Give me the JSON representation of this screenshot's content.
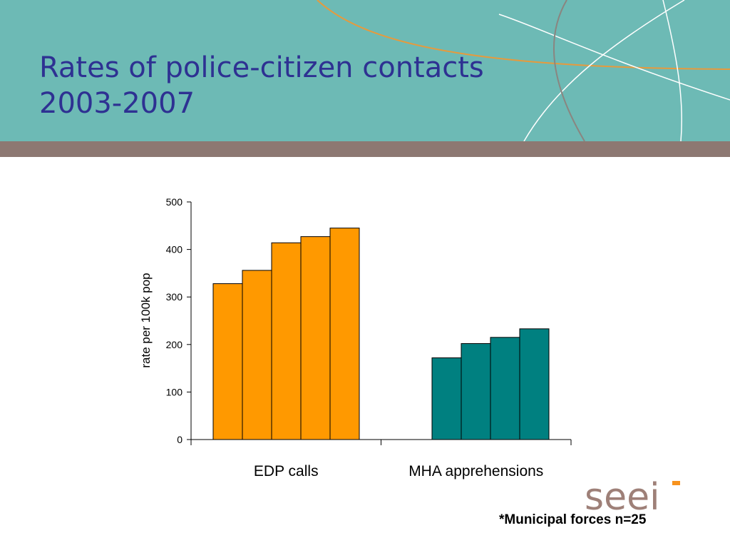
{
  "slide": {
    "title_line1": "Rates of police-citizen contacts",
    "title_line2": "2003-2007",
    "footnote": "*Municipal forces n=25",
    "logo_text": "seei"
  },
  "colors": {
    "header": "#6dbab5",
    "band": "#8d7872",
    "title": "#2e3192",
    "edp": "#ff9900",
    "mha": "#008080",
    "logo_letters": "#9e8078",
    "logo_accent": "#f7931e"
  },
  "chart_data": {
    "type": "bar",
    "title": "",
    "xlabel": "",
    "ylabel": "rate per 100k pop",
    "ylim": [
      0,
      500
    ],
    "yticks": [
      0,
      100,
      200,
      300,
      400,
      500
    ],
    "grid": false,
    "legend": "none",
    "groups": [
      {
        "label": "EDP calls",
        "values": [
          328,
          356,
          414,
          427,
          445
        ]
      },
      {
        "label": "MHA apprehensions",
        "values": [
          172,
          202,
          215,
          233
        ]
      }
    ]
  }
}
